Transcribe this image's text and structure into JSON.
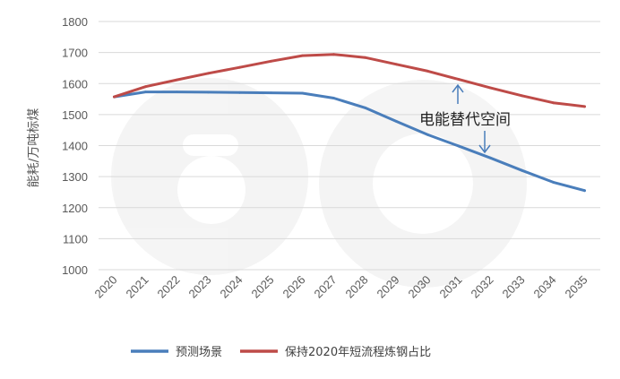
{
  "chart_data": {
    "type": "line",
    "title": "",
    "xlabel": "",
    "ylabel": "能耗/万吨标煤",
    "categories": [
      "2020",
      "2021",
      "2022",
      "2023",
      "2024",
      "2025",
      "2026",
      "2027",
      "2028",
      "2029",
      "2030",
      "2031",
      "2032",
      "2033",
      "2034",
      "2035"
    ],
    "ylim": [
      1000,
      1800
    ],
    "yticks": [
      1000,
      1100,
      1200,
      1300,
      1400,
      1500,
      1600,
      1700,
      1800
    ],
    "grid": true,
    "legend_position": "bottom",
    "series": [
      {
        "name": "预测场景",
        "color": "#4a7ebb",
        "values": [
          1557,
          1573,
          1573,
          1572,
          1571,
          1570,
          1569,
          1553,
          1522,
          1478,
          1435,
          1398,
          1360,
          1320,
          1282,
          1255
        ]
      },
      {
        "name": "保持2020年短流程炼钢占比",
        "color": "#be4b48",
        "values": [
          1557,
          1590,
          1612,
          1633,
          1652,
          1672,
          1690,
          1694,
          1684,
          1662,
          1640,
          1613,
          1586,
          1561,
          1538,
          1526
        ]
      }
    ],
    "annotation": {
      "text": "电能替代空间"
    }
  }
}
